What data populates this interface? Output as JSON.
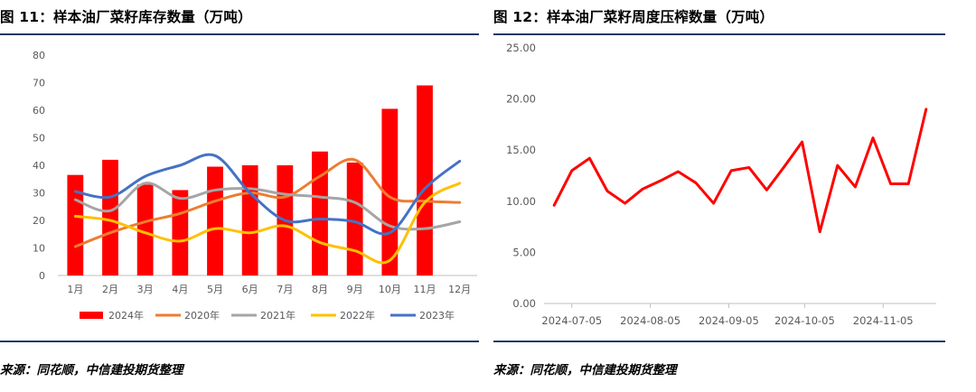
{
  "charts": [
    {
      "title": "图 11：样本油厂菜籽库存数量（万吨）",
      "source": "来源：同花顺，中信建投期货整理",
      "chart_data": {
        "type": "bar",
        "categories": [
          "1月",
          "2月",
          "3月",
          "4月",
          "5月",
          "6月",
          "7月",
          "8月",
          "9月",
          "10月",
          "11月",
          "12月"
        ],
        "ylim": [
          0,
          80
        ],
        "yticks": [
          0,
          10,
          20,
          30,
          40,
          50,
          60,
          70,
          80
        ],
        "grid": false,
        "legend_position": "bottom",
        "series": [
          {
            "name": "2024年",
            "type": "bar",
            "color": "#ff0000",
            "values": [
              36.5,
              42,
              33,
              31,
              39.5,
              40,
              40,
              45,
              41,
              60.5,
              69,
              null
            ]
          },
          {
            "name": "2020年",
            "type": "line",
            "color": "#ed7d31",
            "values": [
              10.5,
              15.5,
              19.5,
              22.5,
              27,
              30,
              28.5,
              36,
              42,
              28.5,
              27,
              26.5
            ]
          },
          {
            "name": "2021年",
            "type": "line",
            "color": "#a5a5a5",
            "values": [
              27.5,
              23.5,
              33.5,
              28,
              31,
              31.5,
              29.5,
              28.5,
              26.5,
              18,
              17,
              19.5
            ]
          },
          {
            "name": "2022年",
            "type": "line",
            "color": "#ffc000",
            "values": [
              21.5,
              20,
              15.5,
              12.5,
              17,
              15.5,
              18,
              12,
              9,
              5.5,
              26.5,
              33.5
            ]
          },
          {
            "name": "2023年",
            "type": "line",
            "color": "#4472c4",
            "values": [
              30.5,
              28.5,
              36,
              40,
              43.5,
              30,
              20,
              20.5,
              19.5,
              15.5,
              31.5,
              41.5
            ]
          }
        ]
      }
    },
    {
      "title": "图 12：样本油厂菜籽周度压榨数量（万吨）",
      "source": "来源：同花顺，中信建投期货整理",
      "chart_data": {
        "type": "line",
        "ylim": [
          0,
          25
        ],
        "yticks": [
          "0.00",
          "5.00",
          "10.00",
          "15.00",
          "20.00",
          "25.00"
        ],
        "x_ticks": [
          "2024-07-05",
          "2024-08-05",
          "2024-09-05",
          "2024-10-05",
          "2024-11-05"
        ],
        "x_tick_dates": [
          "2024-07-05",
          "2024-08-05",
          "2024-09-05",
          "2024-10-05",
          "2024-11-05"
        ],
        "grid": false,
        "series": [
          {
            "name": "",
            "color": "#ff0000",
            "x": [
              "2024-06-28",
              "2024-07-05",
              "2024-07-12",
              "2024-07-19",
              "2024-07-26",
              "2024-08-02",
              "2024-08-09",
              "2024-08-16",
              "2024-08-23",
              "2024-08-30",
              "2024-09-06",
              "2024-09-13",
              "2024-09-20",
              "2024-09-27",
              "2024-10-04",
              "2024-10-11",
              "2024-10-18",
              "2024-10-25",
              "2024-11-01",
              "2024-11-08",
              "2024-11-15",
              "2024-11-22"
            ],
            "values": [
              9.6,
              13.0,
              14.2,
              11.0,
              9.8,
              11.2,
              12.0,
              12.9,
              11.8,
              9.8,
              13.0,
              13.3,
              11.1,
              13.4,
              15.8,
              7.0,
              13.5,
              11.4,
              16.2,
              11.7,
              11.7,
              19.0
            ]
          }
        ]
      }
    }
  ]
}
